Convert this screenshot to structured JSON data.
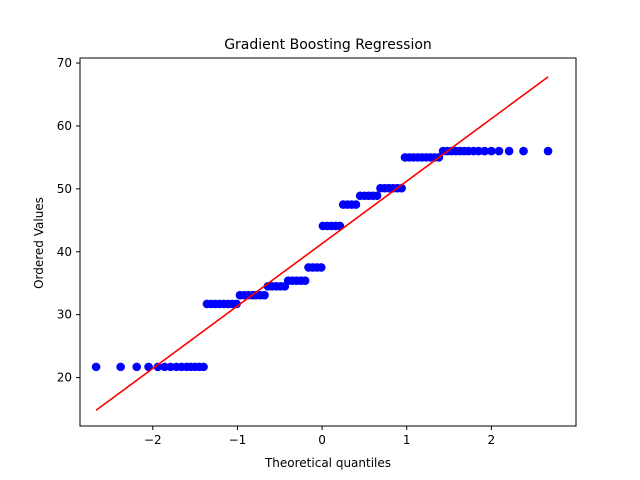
{
  "chart_data": {
    "type": "scatter",
    "title": "Gradient Boosting Regression",
    "xlabel": "Theoretical quantiles",
    "ylabel": "Ordered Values",
    "xlim": [
      -2.86,
      3.0
    ],
    "ylim": [
      12.3,
      70.8
    ],
    "xticks": [
      -2,
      -1,
      0,
      1,
      2
    ],
    "yticks": [
      20,
      30,
      40,
      50,
      60,
      70
    ],
    "grid": false,
    "legend": "none",
    "colors": {
      "points": "#0000ff",
      "fit_line": "#ff0000",
      "axes": "#000000"
    },
    "series": [
      {
        "name": "ordered values",
        "kind": "scatter",
        "x": [
          -2.67,
          -2.38,
          -2.19,
          -2.05,
          -1.94,
          -1.86,
          -1.79,
          -1.72,
          -1.66,
          -1.6,
          -1.55,
          -1.5,
          -1.45,
          -1.4,
          -1.36,
          -1.31,
          -1.26,
          -1.21,
          -1.16,
          -1.11,
          -1.06,
          -1.01,
          -0.97,
          -0.92,
          -0.87,
          -0.82,
          -0.78,
          -0.73,
          -0.68,
          -0.64,
          -0.59,
          -0.54,
          -0.49,
          -0.44,
          -0.4,
          -0.35,
          -0.3,
          -0.25,
          -0.2,
          -0.16,
          -0.11,
          -0.06,
          -0.01,
          0.01,
          0.06,
          0.11,
          0.16,
          0.21,
          0.25,
          0.3,
          0.35,
          0.4,
          0.45,
          0.5,
          0.55,
          0.6,
          0.65,
          0.69,
          0.74,
          0.79,
          0.84,
          0.89,
          0.94,
          0.98,
          1.03,
          1.08,
          1.13,
          1.18,
          1.23,
          1.28,
          1.33,
          1.38,
          1.43,
          1.48,
          1.53,
          1.58,
          1.63,
          1.68,
          1.73,
          1.79,
          1.85,
          1.92,
          2.0,
          2.09,
          2.21,
          2.38,
          2.67
        ],
        "y": [
          21.7,
          21.7,
          21.7,
          21.7,
          21.7,
          21.7,
          21.7,
          21.7,
          21.7,
          21.7,
          21.7,
          21.7,
          21.7,
          21.7,
          31.7,
          31.7,
          31.7,
          31.7,
          31.7,
          31.7,
          31.7,
          31.7,
          33.1,
          33.1,
          33.1,
          33.1,
          33.1,
          33.1,
          33.1,
          34.5,
          34.5,
          34.5,
          34.5,
          34.5,
          35.4,
          35.4,
          35.4,
          35.4,
          35.4,
          37.5,
          37.5,
          37.5,
          37.5,
          44.1,
          44.1,
          44.1,
          44.1,
          44.1,
          47.5,
          47.5,
          47.5,
          47.5,
          48.9,
          48.9,
          48.9,
          48.9,
          48.9,
          50.1,
          50.1,
          50.1,
          50.1,
          50.1,
          50.1,
          55.0,
          55.0,
          55.0,
          55.0,
          55.0,
          55.0,
          55.0,
          55.0,
          55.0,
          56.0,
          56.0,
          56.0,
          56.0,
          56.0,
          56.0,
          56.0,
          56.0,
          56.0,
          56.0,
          56.0,
          56.0,
          56.0,
          56.0,
          56.0
        ]
      },
      {
        "name": "fit line",
        "kind": "line",
        "x": [
          -2.67,
          2.67
        ],
        "y": [
          14.8,
          67.8
        ]
      }
    ]
  }
}
